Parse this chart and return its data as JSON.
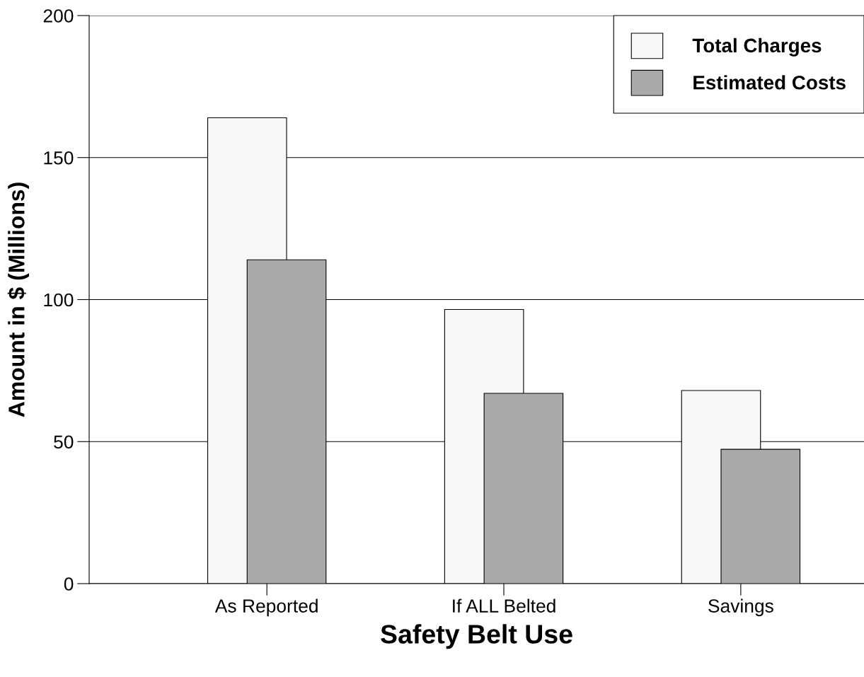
{
  "chart_data": {
    "type": "bar",
    "xlabel": "Safety Belt Use",
    "ylabel": "Amount in $ (Millions)",
    "categories": [
      "As Reported",
      "If ALL Belted",
      "Savings"
    ],
    "series": [
      {
        "name": "Total Charges",
        "color": "#f8f8f8",
        "values": [
          164,
          96.5,
          68
        ]
      },
      {
        "name": "Estimated Costs",
        "color": "#aaaaaa",
        "values": [
          114,
          67,
          47.3
        ]
      }
    ],
    "ylim": [
      0,
      200
    ],
    "yticks": [
      0,
      50,
      100,
      150,
      200
    ],
    "grid": "y",
    "legend": "top right"
  }
}
